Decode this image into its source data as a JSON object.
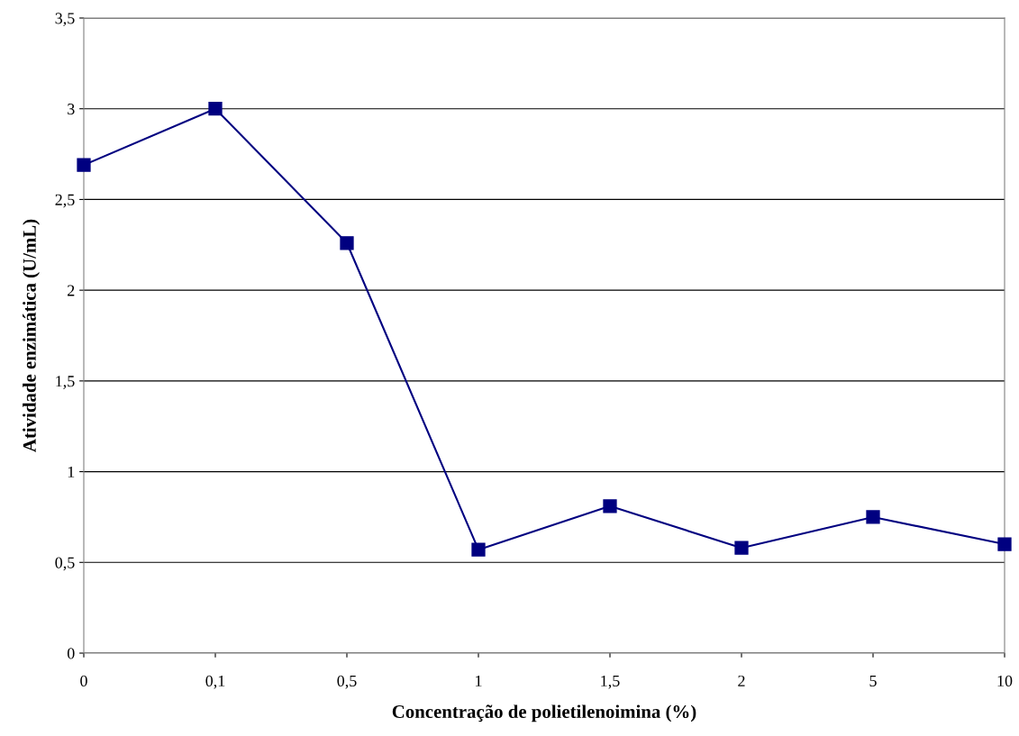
{
  "chart_data": {
    "type": "line",
    "xlabel": "Concentração de polietilenoimina (%)",
    "ylabel": "Atividade enzimática (U/mL)",
    "categories": [
      "0",
      "0,1",
      "0,5",
      "1",
      "1,5",
      "2",
      "5",
      "10"
    ],
    "series": [
      {
        "color": "#000080",
        "values": [
          2.69,
          3.0,
          2.26,
          0.57,
          0.81,
          0.58,
          0.75,
          0.6
        ]
      }
    ],
    "ylim": [
      0,
      3.5
    ],
    "yticks": [
      0,
      {
        "value": 0.5,
        "label": "0,5"
      },
      1,
      {
        "value": 1.5,
        "label": "1,5"
      },
      2,
      {
        "value": 2.5,
        "label": "2,5"
      },
      3,
      {
        "value": 3.5,
        "label": "3,5"
      }
    ],
    "grid": "y",
    "marker": "square",
    "line_style": "solid",
    "legend": false
  }
}
